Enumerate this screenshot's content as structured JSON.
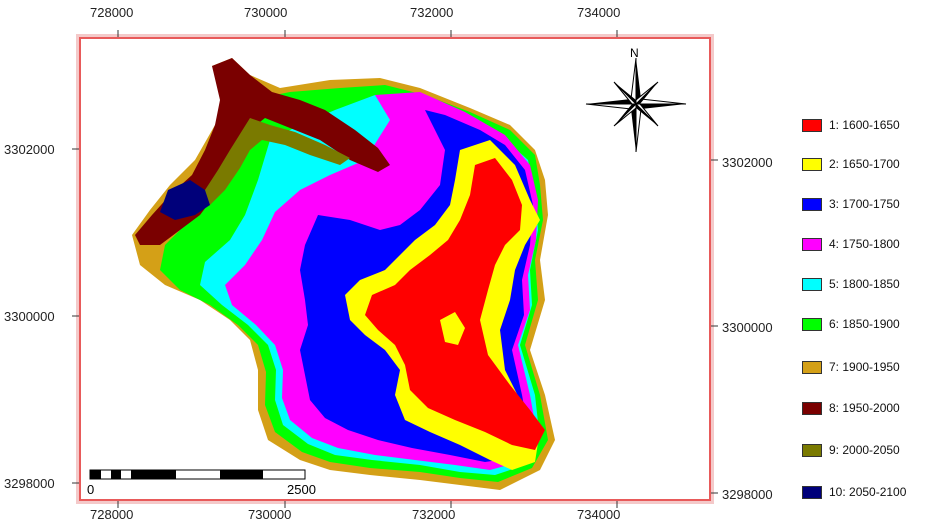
{
  "map": {
    "top_ticks": [
      "728000",
      "730000",
      "732000",
      "734000"
    ],
    "bottom_ticks": [
      "728000",
      "730000",
      "732000",
      "734000"
    ],
    "left_ticks": [
      "3302000",
      "3300000",
      "3298000"
    ],
    "right_ticks": [
      "3302000",
      "3300000",
      "3298000"
    ],
    "north_label": "N",
    "scalebar": {
      "start_label": "0",
      "end_label": "2500"
    }
  },
  "legend": {
    "items": [
      {
        "label": "1: 1600-1650",
        "color": "#ff0000"
      },
      {
        "label": "2: 1650-1700",
        "color": "#ffff00"
      },
      {
        "label": "3: 1700-1750",
        "color": "#0000ff"
      },
      {
        "label": "4: 1750-1800",
        "color": "#ff00ff"
      },
      {
        "label": "5: 1800-1850",
        "color": "#00ffff"
      },
      {
        "label": "6: 1850-1900",
        "color": "#00ff00"
      },
      {
        "label": "7: 1900-1950",
        "color": "#d4a017"
      },
      {
        "label": "8: 1950-2000",
        "color": "#7a0000"
      },
      {
        "label": "9: 2000-2050",
        "color": "#7a7a00"
      },
      {
        "label": "10: 2050-2100",
        "color": "#00007a"
      }
    ]
  }
}
